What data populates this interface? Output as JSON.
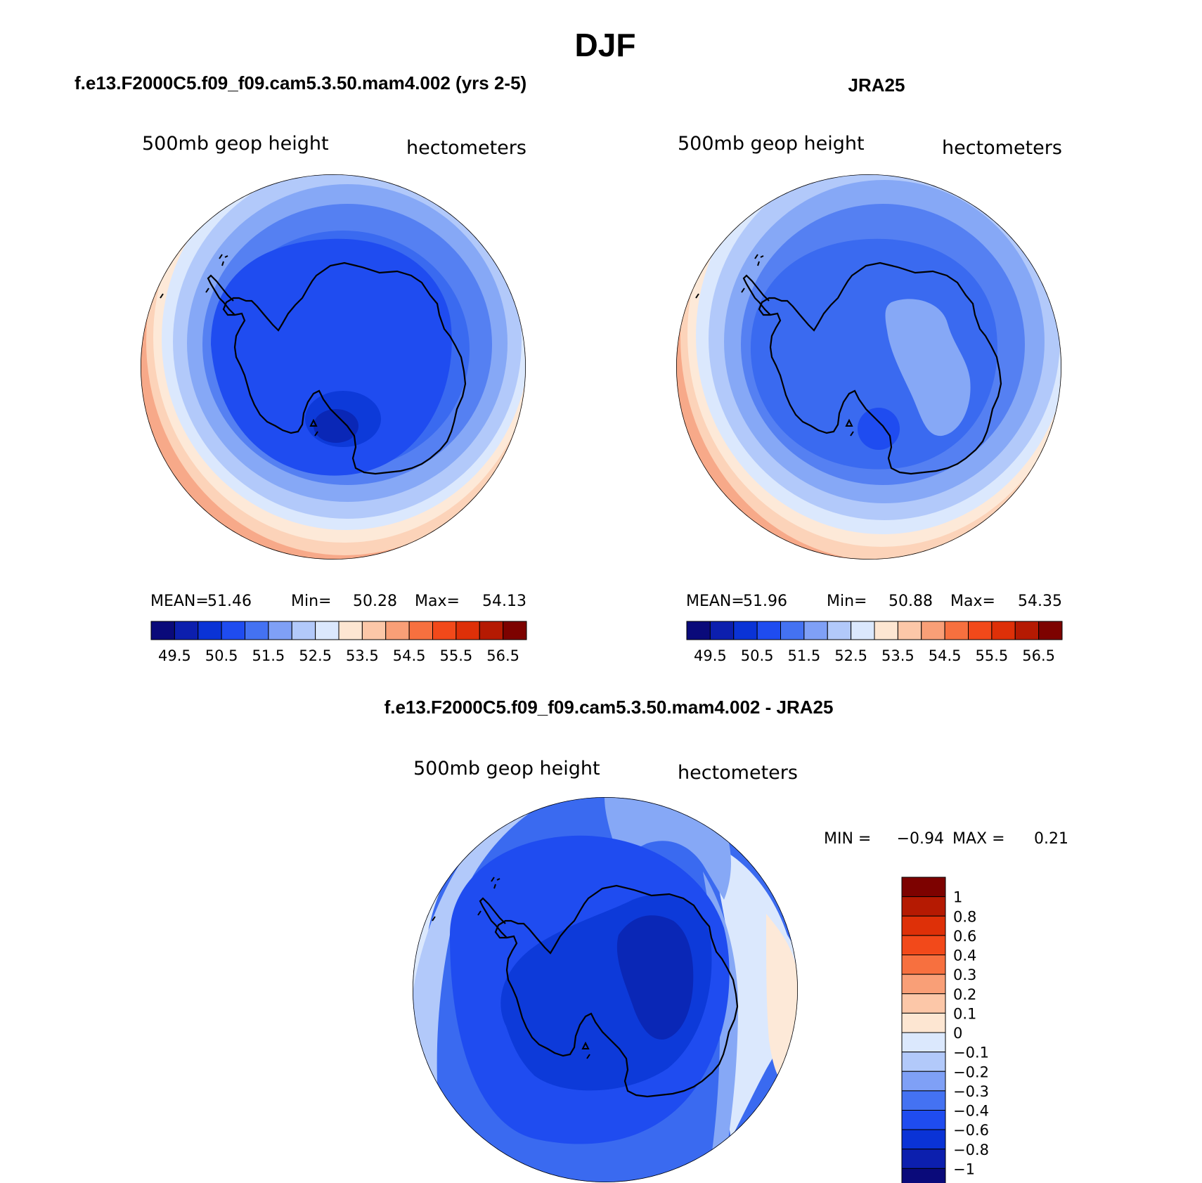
{
  "figure": {
    "title": "DJF"
  },
  "panels": [
    {
      "id": "model",
      "title": "f.e13.F2000C5.f09_f09.cam5.3.50.mam4.002 (yrs 2-5)",
      "left_label": "500mb  geop  height",
      "right_label": "hectometers",
      "stats": {
        "mean_label": "MEAN=",
        "mean": "51.46",
        "min_label": "Min=",
        "min": "50.28",
        "max_label": "Max=",
        "max": "54.13"
      }
    },
    {
      "id": "obs",
      "title": "JRA25",
      "left_label": "500mb  geop  height",
      "right_label": "hectometers",
      "stats": {
        "mean_label": "MEAN=",
        "mean": "51.96",
        "min_label": "Min=",
        "min": "50.88",
        "max_label": "Max=",
        "max": "54.35"
      }
    },
    {
      "id": "diff",
      "title": "f.e13.F2000C5.f09_f09.cam5.3.50.mam4.002 - JRA25",
      "left_label": "500mb  geop  height",
      "right_label": "hectometers",
      "stats": {
        "min_label": "MIN =",
        "min": "−0.94",
        "max_label": "MAX =",
        "max": "0.21"
      }
    }
  ],
  "colorbar_main": {
    "colors": [
      "#0a0a7a",
      "#0c1fae",
      "#0a33d6",
      "#1f4cf0",
      "#4472f2",
      "#7fa0f6",
      "#b2c9fa",
      "#dbe8fd",
      "#fde6d2",
      "#fcc7a8",
      "#f99f77",
      "#f7703f",
      "#f2491a",
      "#de3008",
      "#b51a02",
      "#7d0200"
    ],
    "tick_labels": [
      "49.5",
      "50.5",
      "51.5",
      "52.5",
      "53.5",
      "54.5",
      "55.5",
      "56.5"
    ]
  },
  "colorbar_diff": {
    "colors": [
      "#7d0200",
      "#b51a02",
      "#de3008",
      "#f2491a",
      "#f7703f",
      "#f99f77",
      "#fcc7a8",
      "#fde6d2",
      "#dbe8fd",
      "#b2c9fa",
      "#7fa0f6",
      "#4472f2",
      "#1f4cf0",
      "#0a33d6",
      "#0c1fae",
      "#0a0a7a"
    ],
    "tick_labels": [
      "1",
      "0.8",
      "0.6",
      "0.4",
      "0.3",
      "0.2",
      "0.1",
      "0",
      "−0.1",
      "−0.2",
      "−0.3",
      "−0.4",
      "−0.6",
      "−0.8",
      "−1"
    ]
  },
  "map_colors": {
    "outer_red": "#f7a989",
    "peach": "#fcd3b9",
    "cream": "#fde9d8",
    "pale_blue": "#dbe8fd",
    "light_blue": "#b2c9fa",
    "mid_blue": "#86a8f6",
    "blue": "#5580f2",
    "royal_blue": "#3a6af0",
    "deep_blue": "#1f4cf0",
    "darker_blue": "#0d3ad9",
    "navy": "#0a27b6",
    "coastline": "#000000"
  }
}
